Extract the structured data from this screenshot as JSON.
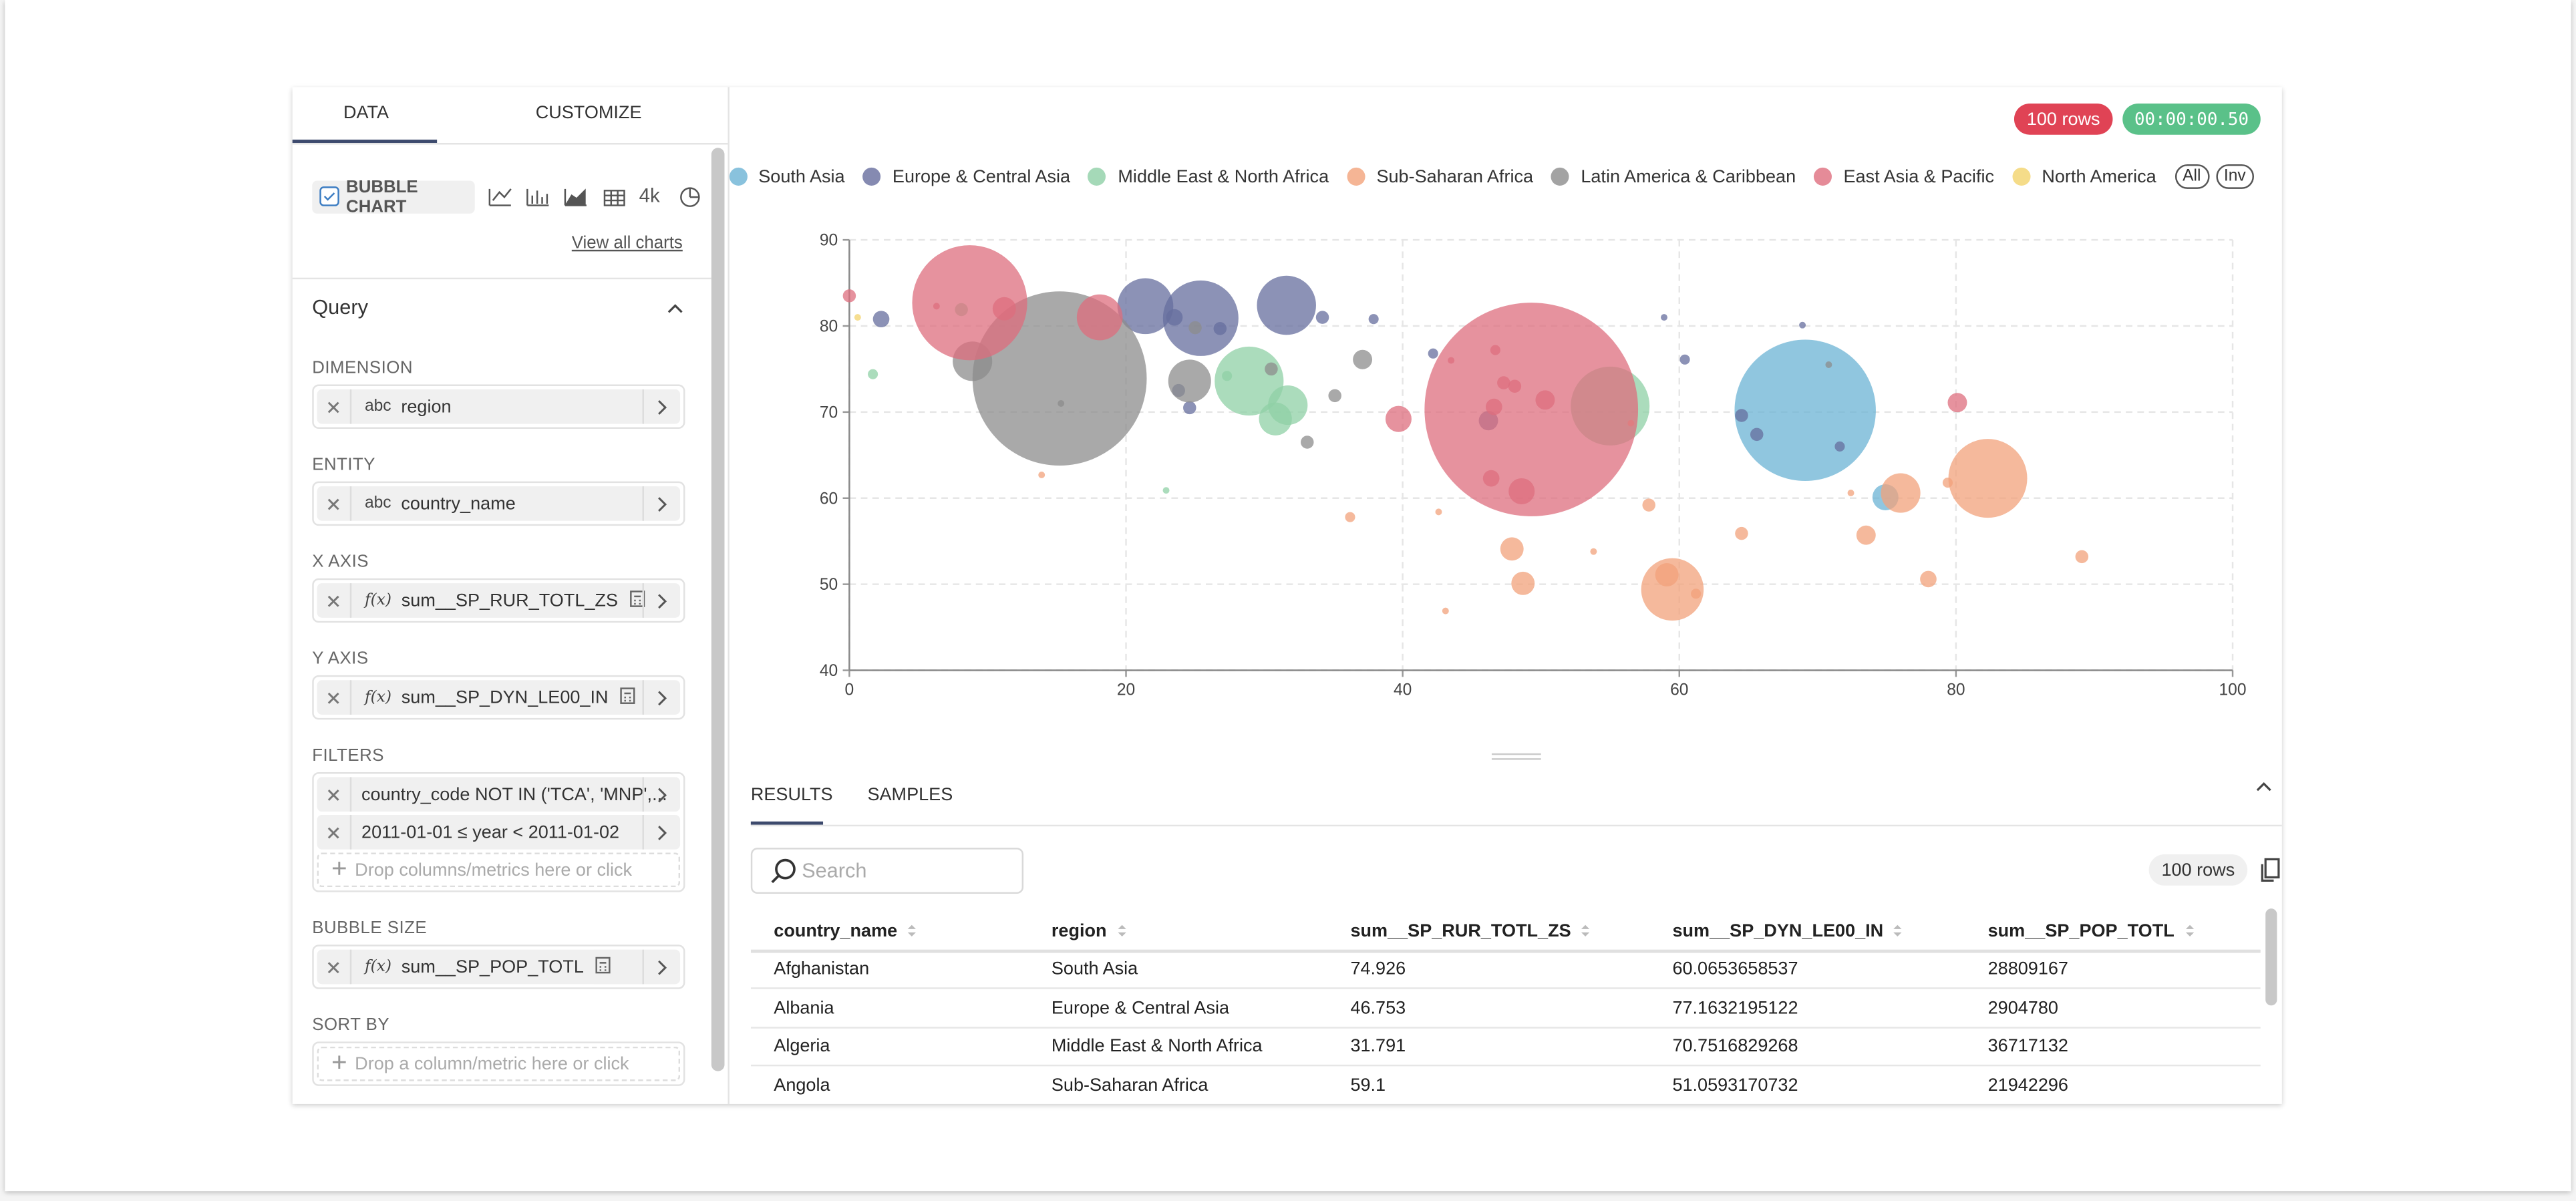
{
  "header": {
    "row_count": "100 rows",
    "timer": "00:00:00.50"
  },
  "left_panel": {
    "tabs": [
      "DATA",
      "CUSTOMIZE"
    ],
    "chart_type": "BUBBLE CHART",
    "chart_icon_4k": "4k",
    "view_all": "View all charts",
    "query_title": "Query",
    "sections": [
      {
        "label": "DIMENSION",
        "items": [
          {
            "prefix": "abc",
            "text": "region"
          }
        ]
      },
      {
        "label": "ENTITY",
        "items": [
          {
            "prefix": "abc",
            "text": "country_name"
          }
        ]
      },
      {
        "label": "X AXIS",
        "items": [
          {
            "prefix": "f(x)",
            "text": "sum__SP_RUR_TOTL_ZS"
          }
        ]
      },
      {
        "label": "Y AXIS",
        "items": [
          {
            "prefix": "f(x)",
            "text": "sum__SP_DYN_LE00_IN"
          }
        ]
      },
      {
        "label": "FILTERS",
        "items": [
          {
            "text": "country_code NOT IN ('TCA', 'MNP',..."
          },
          {
            "text": "2011-01-01 ≤ year < 2011-01-02"
          }
        ],
        "placeholder": "Drop columns/metrics here or click"
      },
      {
        "label": "BUBBLE SIZE",
        "items": [
          {
            "prefix": "f(x)",
            "text": "sum__SP_POP_TOTL"
          }
        ]
      },
      {
        "label": "SORT BY",
        "placeholder": "Drop a column/metric here or click"
      }
    ]
  },
  "chart_data": {
    "type": "bubble",
    "xlim": [
      0,
      100
    ],
    "ylim": [
      40,
      90
    ],
    "xticks": [
      0,
      20,
      40,
      60,
      80,
      100
    ],
    "yticks": [
      40,
      50,
      60,
      70,
      80,
      90
    ],
    "grid": true,
    "legend_buttons": [
      "All",
      "Inv"
    ],
    "series": [
      {
        "name": "South Asia",
        "color": "#6bb3d4",
        "x": [
          69.1,
          74.9
        ],
        "values": [
          70.2,
          60.1
        ],
        "size": [
          588,
          20
        ]
      },
      {
        "name": "Europe & Central Asia",
        "color": "#666d9e",
        "x": [
          21.4,
          25.4,
          31.6,
          2.3,
          34.2,
          37.9,
          23.5,
          26.8,
          24.6,
          46.2,
          60.4,
          64.5,
          65.6,
          71.6,
          58.9,
          68.9,
          42.2,
          23.8
        ],
        "values": [
          82.3,
          80.9,
          82.4,
          80.8,
          81.0,
          80.8,
          81.0,
          79.7,
          70.5,
          69.0,
          76.1,
          69.6,
          67.4,
          66.0,
          81.0,
          80.1,
          76.8,
          72.5
        ],
        "size": [
          92,
          168,
          103,
          8,
          5,
          3,
          8,
          5,
          5,
          11,
          3,
          5,
          5,
          3,
          1.3,
          1.3,
          3,
          5
        ]
      },
      {
        "name": "Middle East & North Africa",
        "color": "#8fd0a6",
        "x": [
          28.9,
          31.7,
          30.8,
          55.0,
          1.7,
          8.1,
          22.9,
          27.3
        ],
        "values": [
          73.6,
          70.8,
          69.2,
          70.7,
          74.4,
          81.9,
          60.9,
          74.2
        ],
        "size": [
          140,
          46,
          32,
          183,
          3,
          5,
          1.3,
          3
        ]
      },
      {
        "name": "Sub-Saharan Africa",
        "color": "#f2a27b",
        "x": [
          82.3,
          76.0,
          59.5,
          59.1,
          47.9,
          48.7,
          57.8,
          64.5,
          73.5,
          78.0,
          89.1,
          79.4,
          61.2,
          53.8,
          43.1,
          42.6,
          36.2,
          13.9,
          72.4,
          56.5
        ],
        "values": [
          62.3,
          60.6,
          49.4,
          51.1,
          54.1,
          50.1,
          59.2,
          55.9,
          55.7,
          50.6,
          53.2,
          61.8,
          48.9,
          53.8,
          46.9,
          58.4,
          57.8,
          62.7,
          60.6,
          68.7
        ],
        "size": [
          183,
          46,
          115,
          16,
          16,
          16,
          5,
          5,
          11,
          8,
          5,
          3,
          3,
          1.3,
          1.3,
          1.3,
          3,
          1.3,
          1.3,
          1.3
        ]
      },
      {
        "name": "Latin America & Caribbean",
        "color": "#8c8c8c",
        "x": [
          15.2,
          8.9,
          24.6,
          37.1,
          30.5,
          33.1,
          35.1,
          25.0,
          70.8,
          15.3
        ],
        "values": [
          73.9,
          75.9,
          73.6,
          76.1,
          75.0,
          66.5,
          71.9,
          79.8,
          75.5,
          71.0
        ],
        "size": [
          894,
          46,
          54,
          11,
          5,
          5,
          5,
          5,
          1.3,
          1.3
        ]
      },
      {
        "name": "East Asia & Pacific",
        "color": "#de6e7e",
        "x": [
          49.3,
          8.7,
          18.1,
          11.2,
          0.0,
          39.7,
          48.6,
          50.3,
          80.1,
          46.6,
          47.3,
          48.1,
          46.4,
          46.7,
          43.5,
          6.3
        ],
        "values": [
          70.3,
          82.7,
          81.0,
          82.0,
          83.5,
          69.2,
          60.8,
          71.4,
          71.1,
          70.6,
          73.4,
          73.0,
          62.3,
          77.2,
          76.0,
          82.3
        ],
        "size": [
          1344,
          390,
          62,
          16,
          5,
          20,
          20,
          11,
          11,
          8,
          5,
          5,
          8,
          3,
          1.3,
          1.3
        ]
      },
      {
        "name": "North America",
        "color": "#f3d36c",
        "x": [
          0.6
        ],
        "values": [
          81.0
        ],
        "size": [
          1.3
        ]
      }
    ]
  },
  "results": {
    "tabs": [
      "RESULTS",
      "SAMPLES"
    ],
    "search_placeholder": "Search",
    "row_count": "100 rows",
    "columns": [
      "country_name",
      "region",
      "sum__SP_RUR_TOTL_ZS",
      "sum__SP_DYN_LE00_IN",
      "sum__SP_POP_TOTL"
    ],
    "rows": [
      [
        "Afghanistan",
        "South Asia",
        "74.926",
        "60.0653658537",
        "28809167"
      ],
      [
        "Albania",
        "Europe & Central Asia",
        "46.753",
        "77.1632195122",
        "2904780"
      ],
      [
        "Algeria",
        "Middle East & North Africa",
        "31.791",
        "70.7516829268",
        "36717132"
      ],
      [
        "Angola",
        "Sub-Saharan Africa",
        "59.1",
        "51.0593170732",
        "21942296"
      ]
    ]
  }
}
